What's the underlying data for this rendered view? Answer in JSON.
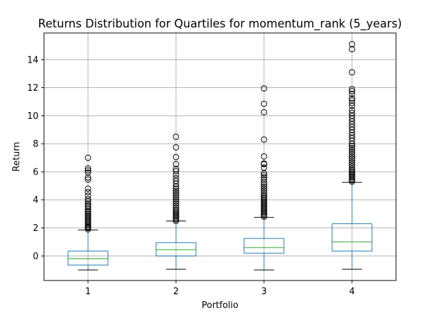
{
  "chart_data": {
    "type": "box",
    "title": "Returns Distribution for Quartiles for momentum_rank (5_years)",
    "xlabel": "Portfolio",
    "ylabel": "Return",
    "ylim": [
      -1.75,
      15.9
    ],
    "yticks": [
      0,
      2,
      4,
      6,
      8,
      10,
      12,
      14
    ],
    "grid": true,
    "colors": {
      "box": "#1f77b4",
      "median": "#2ca02c",
      "whisker_cap": "#000000",
      "grid": "#b0b0b0"
    },
    "categories": [
      "1",
      "2",
      "3",
      "4"
    ],
    "boxes": [
      {
        "label": "1",
        "whisker_low": -1.0,
        "q1": -0.65,
        "median": -0.2,
        "q3": 0.35,
        "whisker_high": 1.85,
        "outliers": [
          1.9,
          2.0,
          2.05,
          2.1,
          2.2,
          2.3,
          2.4,
          2.5,
          2.6,
          2.7,
          2.8,
          2.9,
          3.0,
          3.1,
          3.2,
          3.35,
          3.5,
          3.6,
          3.75,
          3.9,
          4.05,
          4.3,
          4.55,
          4.8,
          5.45,
          5.6,
          5.95,
          6.1,
          6.25,
          7.0
        ]
      },
      {
        "label": "2",
        "whisker_low": -0.95,
        "q1": 0.0,
        "median": 0.45,
        "q3": 0.95,
        "whisker_high": 2.5,
        "outliers": [
          2.5,
          2.6,
          2.7,
          2.8,
          2.9,
          3.0,
          3.1,
          3.2,
          3.3,
          3.45,
          3.6,
          3.75,
          3.9,
          4.05,
          4.2,
          4.35,
          4.5,
          4.65,
          4.8,
          4.95,
          5.15,
          5.35,
          5.55,
          5.8,
          6.05,
          6.2,
          6.55,
          7.05,
          7.75,
          8.5
        ]
      },
      {
        "label": "3",
        "whisker_low": -1.0,
        "q1": 0.2,
        "median": 0.6,
        "q3": 1.25,
        "whisker_high": 2.75,
        "outliers": [
          2.8,
          2.9,
          3.0,
          3.1,
          3.2,
          3.3,
          3.4,
          3.5,
          3.6,
          3.7,
          3.8,
          3.9,
          4.0,
          4.1,
          4.2,
          4.35,
          4.5,
          4.65,
          4.8,
          4.95,
          5.1,
          5.25,
          5.45,
          5.6,
          5.75,
          5.9,
          6.3,
          6.55,
          6.6,
          7.1,
          8.3,
          10.25,
          10.85,
          11.95
        ]
      },
      {
        "label": "4",
        "whisker_low": -0.95,
        "q1": 0.35,
        "median": 1.0,
        "q3": 2.3,
        "whisker_high": 5.25,
        "outliers": [
          5.3,
          5.4,
          5.5,
          5.6,
          5.7,
          5.8,
          5.9,
          6.0,
          6.1,
          6.2,
          6.35,
          6.5,
          6.65,
          6.8,
          6.95,
          7.1,
          7.25,
          7.4,
          7.55,
          7.7,
          7.85,
          8.0,
          8.2,
          8.4,
          8.6,
          8.8,
          9.0,
          9.2,
          9.4,
          9.6,
          9.8,
          10.0,
          10.2,
          10.4,
          10.7,
          10.9,
          11.1,
          11.25,
          11.55,
          11.75,
          11.9,
          13.1,
          14.75,
          15.1
        ]
      }
    ]
  }
}
